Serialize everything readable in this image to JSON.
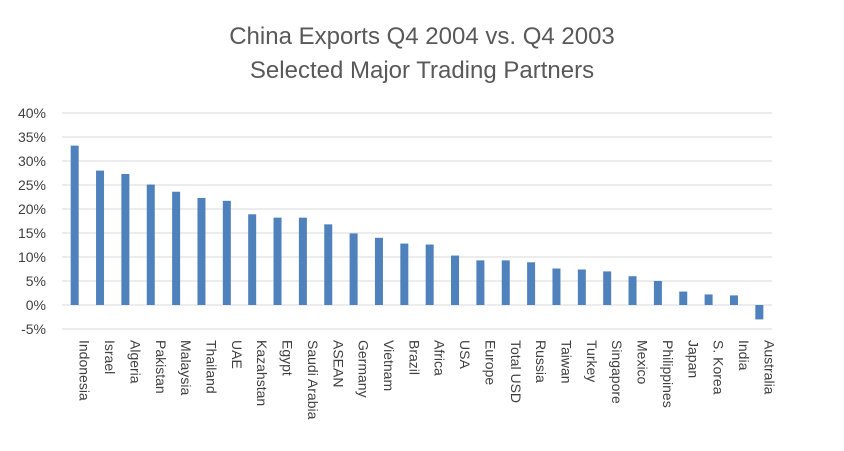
{
  "chart_data": {
    "type": "bar",
    "title": "China Exports Q4 2004 vs. Q4 2003",
    "subtitle": "Selected Major Trading Partners",
    "xlabel": "",
    "ylabel": "",
    "ylim": [
      -5,
      40
    ],
    "yticks": [
      "-5%",
      "0%",
      "5%",
      "10%",
      "15%",
      "20%",
      "25%",
      "30%",
      "35%",
      "40%"
    ],
    "grid": true,
    "bar_color": "#4f81bd",
    "categories": [
      "Indonesia",
      "Israel",
      "Algeria",
      "Pakistan",
      "Malaysia",
      "Thailand",
      "UAE",
      "Kazahstan",
      "Egypt",
      "Saudi Arabia",
      "ASEAN",
      "Germany",
      "Vietnam",
      "Brazil",
      "Africa",
      "USA",
      "Europe",
      "Total USD",
      "Russia",
      "Taiwan",
      "Turkey",
      "Singapore",
      "Mexico",
      "Philippines",
      "Japan",
      "S. Korea",
      "India",
      "Australia"
    ],
    "values": [
      33.2,
      28.0,
      27.3,
      25.1,
      23.6,
      22.3,
      21.7,
      18.9,
      18.2,
      18.2,
      16.8,
      14.9,
      14.0,
      12.8,
      12.6,
      10.3,
      9.3,
      9.3,
      8.9,
      7.6,
      7.4,
      7.0,
      6.0,
      5.0,
      2.8,
      2.2,
      2.0,
      -3.0
    ]
  }
}
